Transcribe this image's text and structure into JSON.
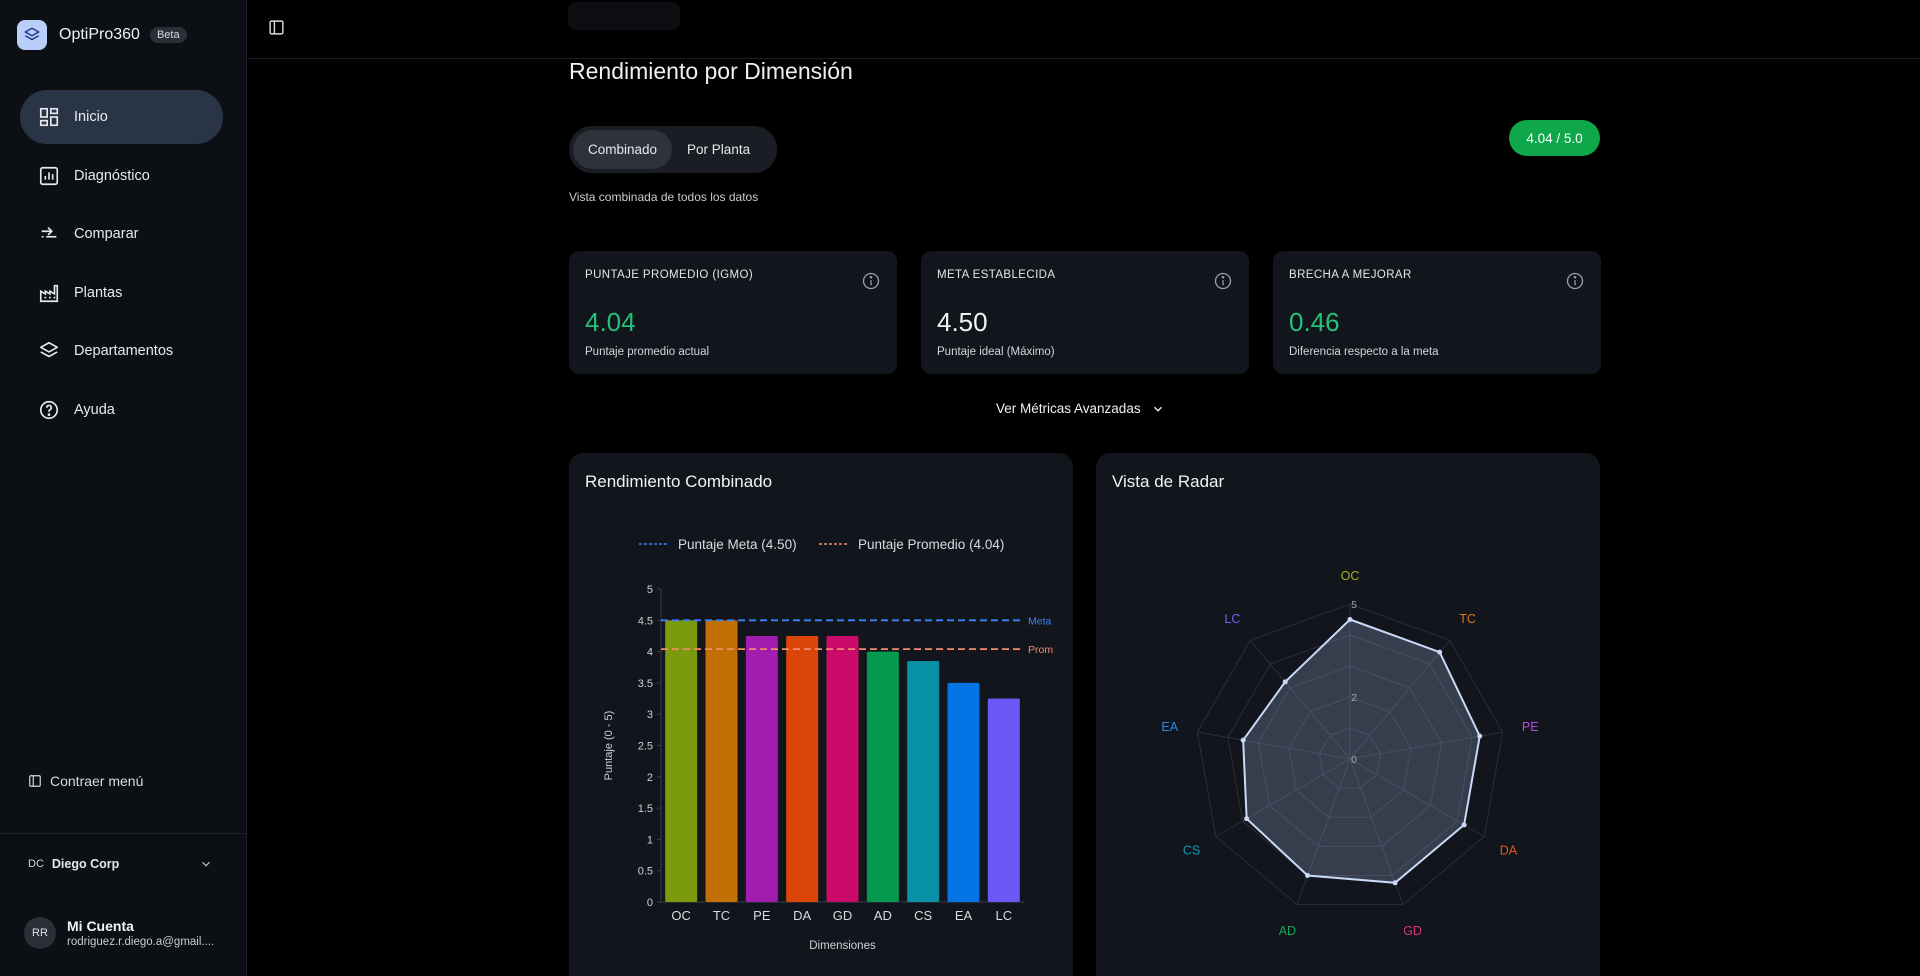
{
  "brand": {
    "name": "OptiPro360",
    "badge": "Beta"
  },
  "nav": [
    {
      "label": "Inicio",
      "icon": "grid-icon",
      "active": true
    },
    {
      "label": "Diagnóstico",
      "icon": "bar-chart-icon"
    },
    {
      "label": "Comparar",
      "icon": "compare-arrows-icon"
    },
    {
      "label": "Plantas",
      "icon": "factory-icon"
    },
    {
      "label": "Departamentos",
      "icon": "layers-icon"
    },
    {
      "label": "Ayuda",
      "icon": "help-circle-icon"
    }
  ],
  "sidebar": {
    "collapse_label": "Contraer menú"
  },
  "org": {
    "initials": "DC",
    "name": "Diego Corp"
  },
  "account": {
    "initials": "RR",
    "name": "Mi Cuenta",
    "email": "rodriguez.r.diego.a@gmail...."
  },
  "page": {
    "title": "Rendimiento por Dimensión",
    "tabs": [
      "Combinado",
      "Por Planta"
    ],
    "active_tab": "Combinado",
    "subtitle": "Vista combinada de todos los datos",
    "score_pill": "4.04 / 5.0",
    "advanced_label": "Ver Métricas Avanzadas"
  },
  "cards": [
    {
      "label": "PUNTAJE PROMEDIO (IGMO)",
      "value": "4.04",
      "desc": "Puntaje promedio actual",
      "value_color": "#22c27a"
    },
    {
      "label": "META ESTABLECIDA",
      "value": "4.50",
      "desc": "Puntaje ideal (Máximo)",
      "value_color": "#f1f3f6"
    },
    {
      "label": "BRECHA A MEJORAR",
      "value": "0.46",
      "desc": "Diferencia respecto a la meta",
      "value_color": "#22c27a"
    }
  ],
  "panels": {
    "bar_title": "Rendimiento Combinado",
    "radar_title": "Vista de Radar"
  },
  "colors": {
    "accent_green": "#0ea84a",
    "meta_line": "#3b82f6",
    "prom_line": "#f28b6b"
  },
  "chart_data": [
    {
      "type": "bar",
      "categories": [
        "OC",
        "TC",
        "PE",
        "DA",
        "GD",
        "AD",
        "CS",
        "EA",
        "LC"
      ],
      "values": [
        4.5,
        4.5,
        4.25,
        4.25,
        4.25,
        4.0,
        3.85,
        3.5,
        3.25
      ],
      "colors": [
        "#7c9a0d",
        "#c27003",
        "#a21caf",
        "#dc4508",
        "#ca0b6a",
        "#049a4e",
        "#0891a5",
        "#0574e5",
        "#6d58f6"
      ],
      "legend": [
        "Puntaje Meta (4.50)",
        "Puntaje Promedio (4.04)"
      ],
      "reference_lines": [
        {
          "label": "Meta",
          "value": 4.5
        },
        {
          "label": "Prom",
          "value": 4.04
        }
      ],
      "xlabel": "Dimensiones",
      "ylabel": "Puntaje (0 - 5)",
      "ylim": [
        0,
        5
      ],
      "yticks": [
        "0",
        "0.5",
        "1",
        "1.5",
        "2",
        "2.5",
        "3",
        "3.5",
        "4",
        "4.5",
        "5"
      ]
    },
    {
      "type": "radar",
      "categories": [
        "OC",
        "TC",
        "PE",
        "DA",
        "GD",
        "AD",
        "CS",
        "EA",
        "LC"
      ],
      "values": [
        4.5,
        4.5,
        4.25,
        4.25,
        4.25,
        4.0,
        3.85,
        3.5,
        3.25
      ],
      "label_colors": [
        "#a3b01a",
        "#d9791a",
        "#b24be0",
        "#e2581e",
        "#d6337a",
        "#14a85c",
        "#0f9db5",
        "#2a86e8",
        "#6f62ee"
      ],
      "rlim": [
        0,
        5
      ],
      "rticks": [
        "0",
        "2",
        "5"
      ]
    }
  ]
}
